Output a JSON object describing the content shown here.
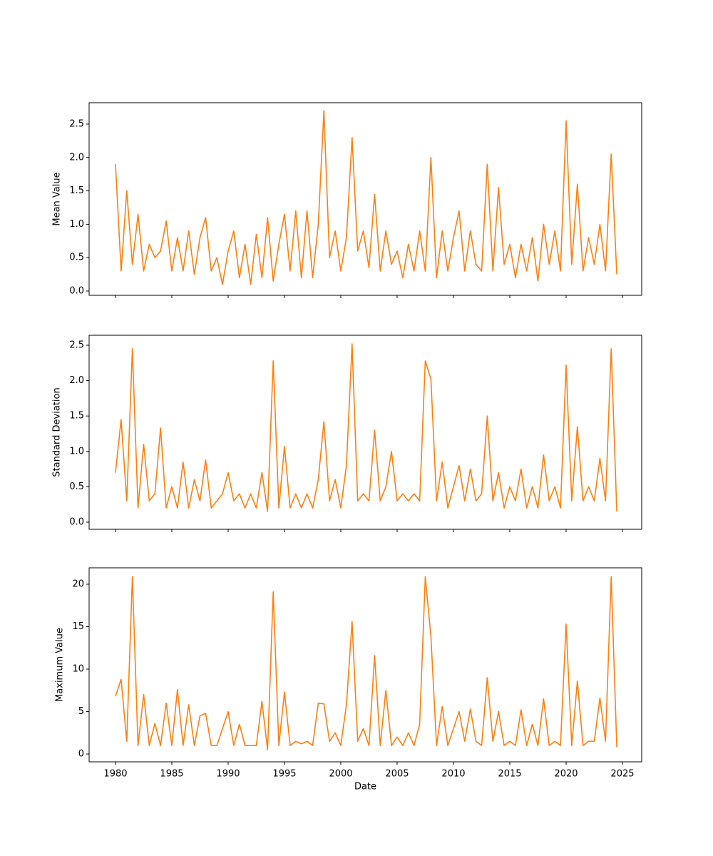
{
  "chart_data": [
    {
      "type": "line",
      "ylabel": "Mean Value",
      "color": "#ff7f0e",
      "x": [
        1980,
        1980.5,
        1981,
        1981.5,
        1982,
        1982.5,
        1983,
        1983.5,
        1984,
        1984.5,
        1985,
        1985.5,
        1986,
        1986.5,
        1987,
        1987.5,
        1988,
        1988.5,
        1989,
        1989.5,
        1990,
        1990.5,
        1991,
        1991.5,
        1992,
        1992.5,
        1993,
        1993.5,
        1994,
        1994.5,
        1995,
        1995.5,
        1996,
        1996.5,
        1997,
        1997.5,
        1998,
        1998.5,
        1999,
        1999.5,
        2000,
        2000.5,
        2001,
        2001.5,
        2002,
        2002.5,
        2003,
        2003.5,
        2004,
        2004.5,
        2005,
        2005.5,
        2006,
        2006.5,
        2007,
        2007.5,
        2008,
        2008.5,
        2009,
        2009.5,
        2010,
        2010.5,
        2011,
        2011.5,
        2012,
        2012.5,
        2013,
        2013.5,
        2014,
        2014.5,
        2015,
        2015.5,
        2016,
        2016.5,
        2017,
        2017.5,
        2018,
        2018.5,
        2019,
        2019.5,
        2020,
        2020.5,
        2021,
        2021.5,
        2022,
        2022.5,
        2023,
        2023.5,
        2024,
        2024.5
      ],
      "values": [
        1.9,
        0.3,
        1.5,
        0.4,
        1.15,
        0.3,
        0.7,
        0.5,
        0.6,
        1.05,
        0.3,
        0.8,
        0.3,
        0.9,
        0.25,
        0.8,
        1.1,
        0.3,
        0.5,
        0.1,
        0.6,
        0.9,
        0.2,
        0.7,
        0.1,
        0.85,
        0.2,
        1.1,
        0.15,
        0.7,
        1.15,
        0.3,
        1.2,
        0.2,
        1.2,
        0.2,
        1.0,
        2.7,
        0.5,
        0.9,
        0.3,
        0.8,
        2.3,
        0.6,
        0.9,
        0.35,
        1.45,
        0.3,
        0.9,
        0.4,
        0.6,
        0.2,
        0.7,
        0.3,
        0.9,
        0.3,
        2.0,
        0.2,
        0.9,
        0.3,
        0.8,
        1.2,
        0.3,
        0.9,
        0.4,
        0.3,
        1.9,
        0.3,
        1.55,
        0.4,
        0.7,
        0.2,
        0.7,
        0.3,
        0.8,
        0.15,
        1.0,
        0.4,
        0.9,
        0.3,
        2.55,
        0.4,
        1.6,
        0.3,
        0.8,
        0.4,
        1.0,
        0.3,
        2.05,
        0.25
      ],
      "xlim": [
        1977.66,
        2026.71
      ],
      "ylim": [
        -0.064,
        2.82
      ],
      "yticks": [
        {
          "value": 0,
          "label": "0.0"
        },
        0.5,
        {
          "value": 1,
          "label": "1.0"
        },
        1.5,
        {
          "value": 2,
          "label": "2.0"
        },
        2.5
      ]
    },
    {
      "type": "line",
      "ylabel": "Standard Deviation",
      "color": "#ff7f0e",
      "x": [
        1980,
        1980.5,
        1981,
        1981.5,
        1982,
        1982.5,
        1983,
        1983.5,
        1984,
        1984.5,
        1985,
        1985.5,
        1986,
        1986.5,
        1987,
        1987.5,
        1988,
        1988.5,
        1989,
        1989.5,
        1990,
        1990.5,
        1991,
        1991.5,
        1992,
        1992.5,
        1993,
        1993.5,
        1994,
        1994.5,
        1995,
        1995.5,
        1996,
        1996.5,
        1997,
        1997.5,
        1998,
        1998.5,
        1999,
        1999.5,
        2000,
        2000.5,
        2001,
        2001.5,
        2002,
        2002.5,
        2003,
        2003.5,
        2004,
        2004.5,
        2005,
        2005.5,
        2006,
        2006.5,
        2007,
        2007.5,
        2008,
        2008.5,
        2009,
        2009.5,
        2010,
        2010.5,
        2011,
        2011.5,
        2012,
        2012.5,
        2013,
        2013.5,
        2014,
        2014.5,
        2015,
        2015.5,
        2016,
        2016.5,
        2017,
        2017.5,
        2018,
        2018.5,
        2019,
        2019.5,
        2020,
        2020.5,
        2021,
        2021.5,
        2022,
        2022.5,
        2023,
        2023.5,
        2024,
        2024.5
      ],
      "values": [
        0.7,
        1.45,
        0.3,
        2.45,
        0.2,
        1.1,
        0.3,
        0.4,
        1.33,
        0.2,
        0.5,
        0.2,
        0.85,
        0.2,
        0.6,
        0.3,
        0.88,
        0.2,
        0.3,
        0.4,
        0.7,
        0.3,
        0.4,
        0.2,
        0.4,
        0.2,
        0.7,
        0.15,
        2.28,
        0.2,
        1.07,
        0.2,
        0.4,
        0.2,
        0.4,
        0.2,
        0.6,
        1.42,
        0.3,
        0.6,
        0.2,
        0.8,
        2.52,
        0.3,
        0.4,
        0.3,
        1.3,
        0.3,
        0.5,
        1.0,
        0.3,
        0.4,
        0.3,
        0.4,
        0.3,
        2.28,
        2.02,
        0.3,
        0.85,
        0.2,
        0.5,
        0.8,
        0.3,
        0.75,
        0.3,
        0.4,
        1.5,
        0.3,
        0.7,
        0.2,
        0.5,
        0.3,
        0.75,
        0.2,
        0.5,
        0.2,
        0.95,
        0.3,
        0.5,
        0.2,
        2.22,
        0.3,
        1.35,
        0.3,
        0.5,
        0.3,
        0.9,
        0.3,
        2.45,
        0.15
      ],
      "xlim": [
        1977.66,
        2026.71
      ],
      "ylim": [
        -0.101,
        2.641
      ],
      "yticks": [
        {
          "value": 0,
          "label": "0.0"
        },
        0.5,
        {
          "value": 1,
          "label": "1.0"
        },
        1.5,
        {
          "value": 2,
          "label": "2.0"
        },
        2.5
      ]
    },
    {
      "type": "line",
      "ylabel": "Maximum Value",
      "xlabel": "Date",
      "color": "#ff7f0e",
      "x": [
        1980,
        1980.5,
        1981,
        1981.5,
        1982,
        1982.5,
        1983,
        1983.5,
        1984,
        1984.5,
        1985,
        1985.5,
        1986,
        1986.5,
        1987,
        1987.5,
        1988,
        1988.5,
        1989,
        1989.5,
        1990,
        1990.5,
        1991,
        1991.5,
        1992,
        1992.5,
        1993,
        1993.5,
        1994,
        1994.5,
        1995,
        1995.5,
        1996,
        1996.5,
        1997,
        1997.5,
        1998,
        1998.5,
        1999,
        1999.5,
        2000,
        2000.5,
        2001,
        2001.5,
        2002,
        2002.5,
        2003,
        2003.5,
        2004,
        2004.5,
        2005,
        2005.5,
        2006,
        2006.5,
        2007,
        2007.5,
        2008,
        2008.5,
        2009,
        2009.5,
        2010,
        2010.5,
        2011,
        2011.5,
        2012,
        2012.5,
        2013,
        2013.5,
        2014,
        2014.5,
        2015,
        2015.5,
        2016,
        2016.5,
        2017,
        2017.5,
        2018,
        2018.5,
        2019,
        2019.5,
        2020,
        2020.5,
        2021,
        2021.5,
        2022,
        2022.5,
        2023,
        2023.5,
        2024,
        2024.5
      ],
      "values": [
        6.8,
        8.8,
        1.5,
        20.9,
        1.0,
        7.0,
        1.0,
        3.6,
        1.0,
        6.0,
        1.0,
        7.6,
        1.0,
        5.8,
        1.0,
        4.5,
        4.8,
        1.0,
        1.0,
        3.0,
        5.0,
        1.0,
        3.5,
        1.0,
        1.0,
        1.0,
        6.2,
        0.5,
        19.1,
        1.0,
        7.3,
        1.0,
        1.5,
        1.2,
        1.5,
        1.0,
        6.0,
        5.9,
        1.5,
        2.5,
        1.0,
        5.8,
        15.6,
        1.5,
        3.0,
        1.0,
        11.6,
        1.0,
        7.5,
        1.0,
        2.0,
        1.0,
        2.5,
        1.0,
        3.5,
        20.9,
        13.8,
        1.0,
        5.6,
        1.0,
        3.0,
        5.0,
        1.5,
        5.3,
        1.5,
        1.0,
        9.0,
        1.5,
        5.0,
        1.0,
        1.5,
        1.0,
        5.2,
        1.0,
        3.5,
        1.0,
        6.5,
        1.0,
        1.5,
        1.0,
        15.3,
        1.0,
        8.6,
        1.0,
        1.5,
        1.5,
        6.6,
        1.5,
        20.9,
        0.8
      ],
      "xlim": [
        1977.66,
        2026.71
      ],
      "ylim": [
        -0.92,
        21.93
      ],
      "yticks": [
        0,
        5,
        10,
        15,
        20
      ],
      "xticks": [
        1980,
        1985,
        1990,
        1995,
        2000,
        2005,
        2010,
        2015,
        2020,
        2025
      ]
    }
  ]
}
